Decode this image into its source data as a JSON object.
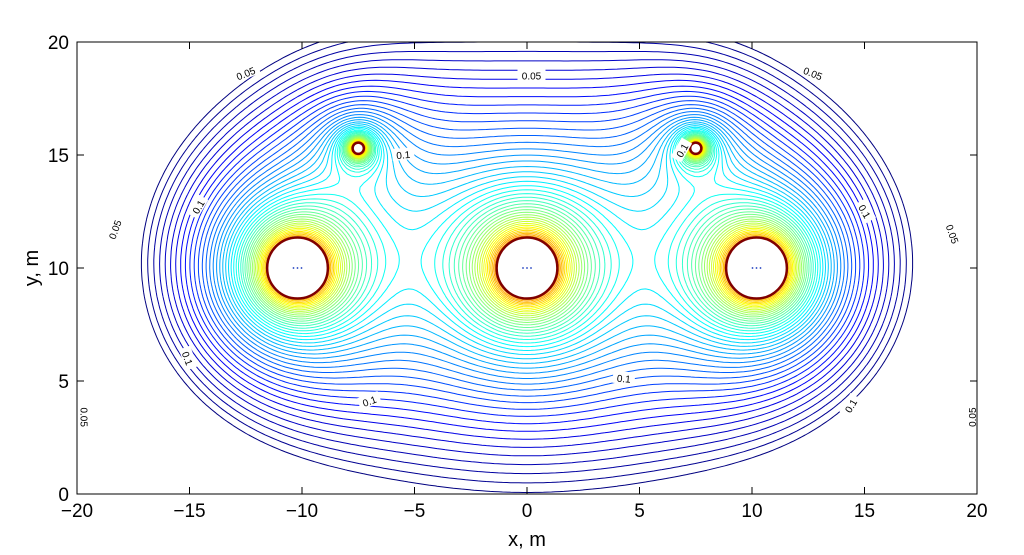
{
  "chart_data": {
    "type": "contour",
    "title": "",
    "xlabel": "x, m",
    "ylabel": "y, m",
    "xlim": [
      -20,
      20
    ],
    "ylim": [
      0,
      20
    ],
    "xticks": [
      "−20",
      "−15",
      "−10",
      "−5",
      "0",
      "5",
      "10",
      "15",
      "20"
    ],
    "yticks": [
      "0",
      "5",
      "10",
      "15",
      "20"
    ],
    "grid": false,
    "colormap": "jet",
    "sources": [
      {
        "x": -10.2,
        "y": 10.0,
        "r": 1.35
      },
      {
        "x": 0.0,
        "y": 10.0,
        "r": 1.35
      },
      {
        "x": 10.2,
        "y": 10.0,
        "r": 1.35
      },
      {
        "x": -7.5,
        "y": 15.3,
        "r": 0.25
      },
      {
        "x": 7.5,
        "y": 15.3,
        "r": 0.25
      }
    ],
    "contour_labels": [
      {
        "text": "0.05",
        "x": -12.5,
        "y": 18.6,
        "angle": -22
      },
      {
        "text": "0.05",
        "x": 0.2,
        "y": 18.5,
        "angle": 0
      },
      {
        "text": "0.05",
        "x": 12.7,
        "y": 18.6,
        "angle": 22
      },
      {
        "text": "0.1",
        "x": -5.5,
        "y": 15.0,
        "angle": -5
      },
      {
        "text": "0.1",
        "x": 6.9,
        "y": 15.2,
        "angle": -60
      },
      {
        "text": "0.1",
        "x": -14.6,
        "y": 12.7,
        "angle": -60
      },
      {
        "text": "0.1",
        "x": 15.0,
        "y": 12.5,
        "angle": 60
      },
      {
        "text": "0.05",
        "x": -18.3,
        "y": 11.7,
        "angle": -70
      },
      {
        "text": "0.05",
        "x": 18.9,
        "y": 11.5,
        "angle": 70
      },
      {
        "text": "0.1",
        "x": -15.1,
        "y": 6.0,
        "angle": 70
      },
      {
        "text": "0.1",
        "x": 4.3,
        "y": 5.1,
        "angle": 5
      },
      {
        "text": "0.1",
        "x": -7.0,
        "y": 4.1,
        "angle": -20
      },
      {
        "text": "0.1",
        "x": 14.4,
        "y": 3.9,
        "angle": -60
      },
      {
        "text": "0.05",
        "x": -19.7,
        "y": 3.4,
        "angle": 90
      },
      {
        "text": "0.05",
        "x": 19.8,
        "y": 3.4,
        "angle": -90
      }
    ]
  }
}
